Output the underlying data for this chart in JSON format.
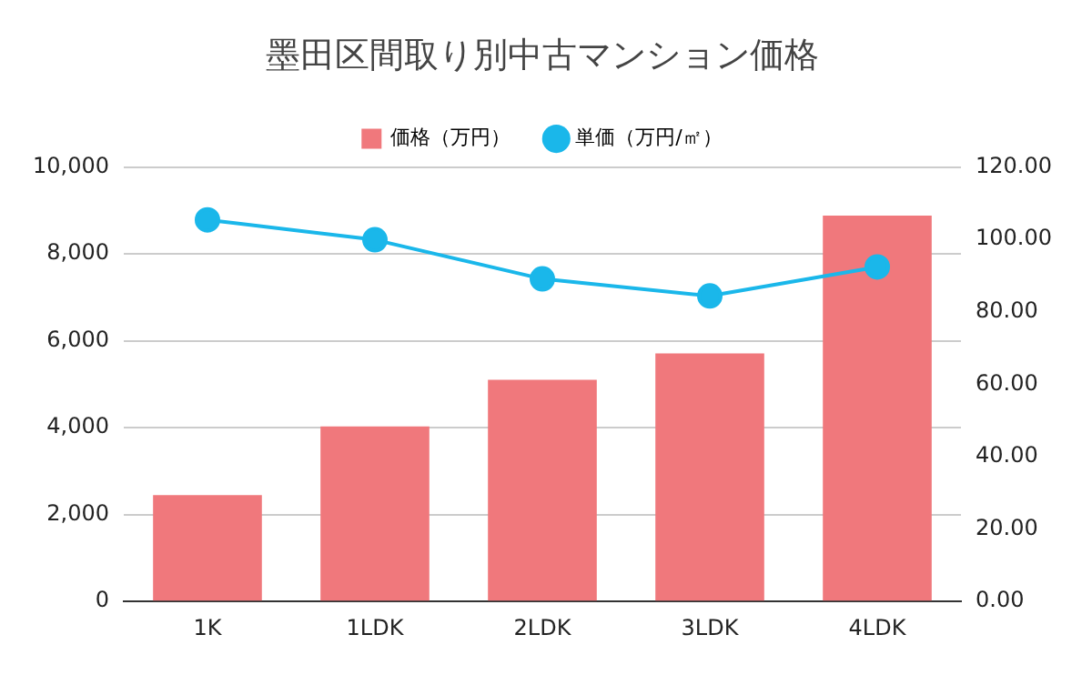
{
  "chart_data": {
    "type": "bar",
    "title": "墨田区間取り別中古マンション価格",
    "categories": [
      "1K",
      "1LDK",
      "2LDK",
      "3LDK",
      "4LDK"
    ],
    "series": [
      {
        "name": "価格（万円）",
        "color": "#f0787c",
        "values": [
          2450,
          4030,
          5100,
          5710,
          8880
        ]
      },
      {
        "name": "単価（万円/㎡）",
        "type": "line",
        "axis": "y2",
        "color": "#1ab7ea",
        "values": [
          105.4,
          99.9,
          89.1,
          84.4,
          92.4
        ]
      }
    ],
    "ylim": [
      0,
      10000
    ],
    "yticks": [
      {
        "value": 0,
        "label": "0"
      },
      {
        "value": 2000,
        "label": "2,000"
      },
      {
        "value": 4000,
        "label": "4,000"
      },
      {
        "value": 6000,
        "label": "6,000"
      },
      {
        "value": 8000,
        "label": "8,000"
      },
      {
        "value": 10000,
        "label": "10,000"
      }
    ],
    "y2lim": [
      0,
      120
    ],
    "y2ticks": [
      {
        "value": 0,
        "label": "0.00"
      },
      {
        "value": 20,
        "label": "20.00"
      },
      {
        "value": 40,
        "label": "40.00"
      },
      {
        "value": 60,
        "label": "60.00"
      },
      {
        "value": 80,
        "label": "80.00"
      },
      {
        "value": 100,
        "label": "100.00"
      },
      {
        "value": 120,
        "label": "120.00"
      }
    ],
    "grid": "y",
    "legend": "top",
    "marker": "circle"
  }
}
